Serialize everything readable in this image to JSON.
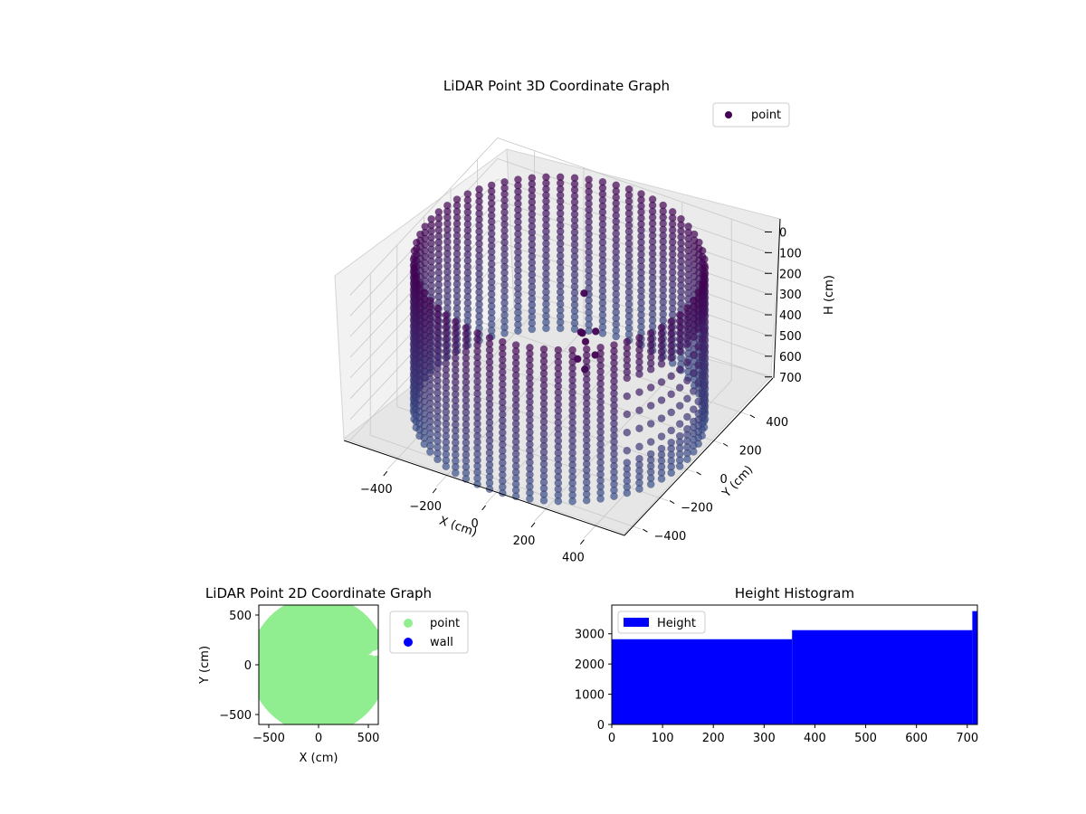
{
  "chart_data": [
    {
      "type": "scatter",
      "projection": "3d",
      "title": "LiDAR Point 3D Coordinate Graph",
      "xlabel": "X (cm)",
      "ylabel": "Y (cm)",
      "zlabel": "H (cm)",
      "xlim": [
        -550,
        550
      ],
      "ylim": [
        -550,
        550
      ],
      "zlim": [
        780,
        0
      ],
      "x_ticks": [
        -400,
        -200,
        0,
        200,
        400
      ],
      "x_tick_labels": [
        "−400",
        "−200",
        "0",
        "200",
        "400"
      ],
      "y_ticks": [
        -400,
        -200,
        0,
        200,
        400
      ],
      "y_tick_labels": [
        "−400",
        "−200",
        "0",
        "200",
        "400"
      ],
      "z_ticks": [
        0,
        100,
        200,
        300,
        400,
        500,
        600,
        700
      ],
      "z_tick_labels": [
        "0",
        "100",
        "200",
        "300",
        "400",
        "500",
        "600",
        "700"
      ],
      "grid": true,
      "legend": {
        "placement": "top-right",
        "entries": [
          {
            "label": "point",
            "color": "#440154"
          }
        ]
      },
      "series": [
        {
          "name": "point",
          "shape": "cylindrical wall",
          "radius": 520,
          "h_range": [
            0,
            730
          ],
          "n_columns": 64,
          "n_levels": 26,
          "colormap": [
            "#440154",
            "#3b528b"
          ],
          "gap_azimuth_deg": [
            -35,
            25
          ],
          "extra_points": [
            {
              "x": 120,
              "y": -60,
              "h": 240
            },
            {
              "x": 150,
              "y": -80,
              "h": 260
            },
            {
              "x": 170,
              "y": -40,
              "h": 230
            },
            {
              "x": 200,
              "y": -100,
              "h": 290
            },
            {
              "x": 140,
              "y": -120,
              "h": 320
            },
            {
              "x": 110,
              "y": -30,
              "h": 270
            },
            {
              "x": 180,
              "y": -140,
              "h": 340
            },
            {
              "x": 90,
              "y": 20,
              "h": 120
            }
          ]
        }
      ]
    },
    {
      "type": "scatter",
      "title": "LiDAR Point 2D Coordinate Graph",
      "xlabel": "X (cm)",
      "ylabel": "Y (cm)",
      "xlim": [
        -600,
        600
      ],
      "ylim": [
        -600,
        600
      ],
      "x_ticks": [
        -500,
        0,
        500
      ],
      "x_tick_labels": [
        "−500",
        "0",
        "500"
      ],
      "y_ticks": [
        -500,
        0,
        500
      ],
      "y_tick_labels": [
        "−500",
        "0",
        "500"
      ],
      "legend": {
        "placement": "outside-right",
        "entries": [
          {
            "label": "point",
            "color": "#90ee90"
          },
          {
            "label": "wall",
            "color": "#0000ff"
          }
        ]
      },
      "series": [
        {
          "name": "point",
          "color": "#90ee90",
          "shape": "filled disk",
          "radius": 690,
          "notch_at": [
            500,
            100
          ]
        },
        {
          "name": "wall",
          "color": "#0000ff",
          "points": []
        }
      ]
    },
    {
      "type": "bar",
      "title": "Height Histogram",
      "xlim": [
        0,
        720
      ],
      "ylim": [
        0,
        3950
      ],
      "x_ticks": [
        0,
        100,
        200,
        300,
        400,
        500,
        600,
        700
      ],
      "x_tick_labels": [
        "0",
        "100",
        "200",
        "300",
        "400",
        "500",
        "600",
        "700"
      ],
      "y_ticks": [
        0,
        1000,
        2000,
        3000
      ],
      "y_tick_labels": [
        "0",
        "1000",
        "2000",
        "3000"
      ],
      "legend": {
        "placement": "top-left",
        "entries": [
          {
            "label": "Height",
            "color": "#0000ff"
          }
        ]
      },
      "series": [
        {
          "name": "Height",
          "color": "#0000ff",
          "bins": [
            {
              "x0": 0,
              "x1": 355,
              "value": 2820
            },
            {
              "x0": 355,
              "x1": 710,
              "value": 3120
            },
            {
              "x0": 710,
              "x1": 720,
              "value": 3750
            }
          ]
        }
      ]
    }
  ]
}
